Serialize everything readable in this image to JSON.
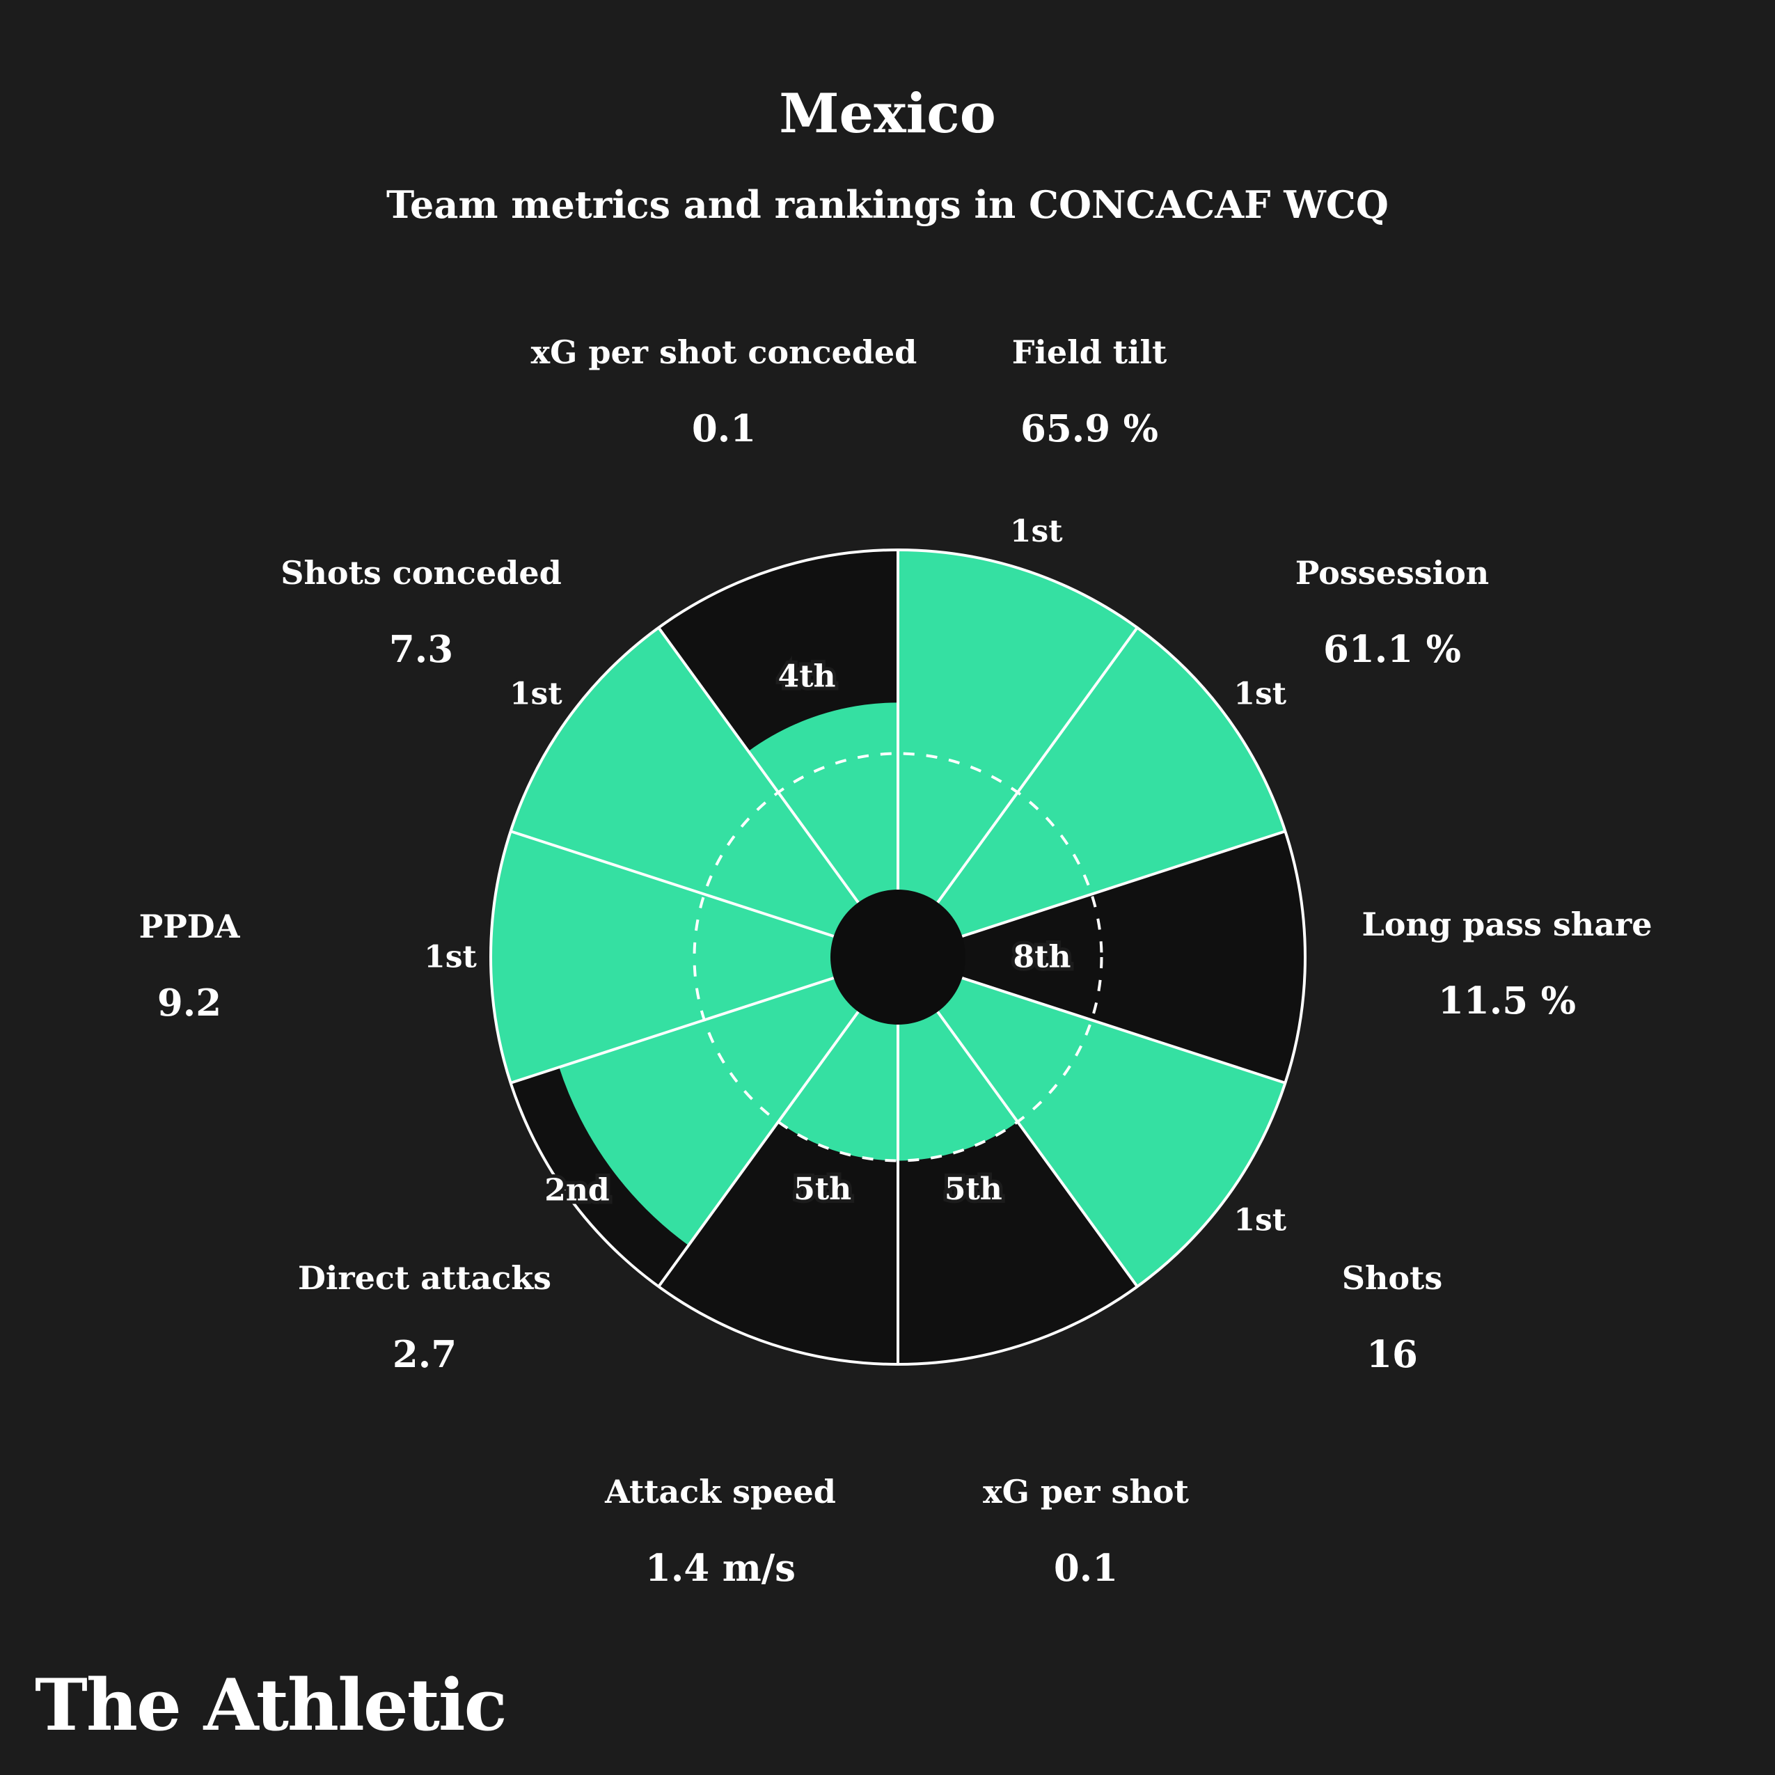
{
  "header": {
    "title_note": "bound from chart_data.title and chart_data.subtitle"
  },
  "footer": {
    "brand": "The Athletic"
  },
  "chart_data": {
    "type": "pie",
    "variant": "pizza-percentile-radial",
    "title": "Mexico",
    "subtitle": "Team metrics and rankings in CONCACAF WCQ",
    "teams_in_group": 8,
    "rank_scale_note": "slice radius = (teams_in_group - rank + 1) / teams_in_group of full radius; dashed ring at 0.5 (median); slices start at 12 o'clock and run clockwise",
    "rings": {
      "outer": 1.0,
      "median_dashed": 0.5
    },
    "colors": {
      "fill": "#35e0a2",
      "empty": "#101010",
      "line": "#ffffff",
      "background": "#1c1c1c",
      "hub": "#0d0d0d",
      "text": "#ffffff"
    },
    "metrics": [
      {
        "label": "Field tilt",
        "value": "65.9 %",
        "rank": "1st",
        "rank_n": 1
      },
      {
        "label": "Possession",
        "value": "61.1 %",
        "rank": "1st",
        "rank_n": 1
      },
      {
        "label": "Long pass share",
        "value": "11.5 %",
        "rank": "8th",
        "rank_n": 8
      },
      {
        "label": "Shots",
        "value": "16",
        "rank": "1st",
        "rank_n": 1
      },
      {
        "label": "xG per shot",
        "value": "0.1",
        "rank": "5th",
        "rank_n": 5
      },
      {
        "label": "Attack speed",
        "value": "1.4 m/s",
        "rank": "5th",
        "rank_n": 5
      },
      {
        "label": "Direct attacks",
        "value": "2.7",
        "rank": "2nd",
        "rank_n": 2
      },
      {
        "label": "PPDA",
        "value": "9.2",
        "rank": "1st",
        "rank_n": 1
      },
      {
        "label": "Shots conceded",
        "value": "7.3",
        "rank": "1st",
        "rank_n": 1
      },
      {
        "label": "xG per shot conceded",
        "value": "0.1",
        "rank": "4th",
        "rank_n": 4
      }
    ]
  }
}
